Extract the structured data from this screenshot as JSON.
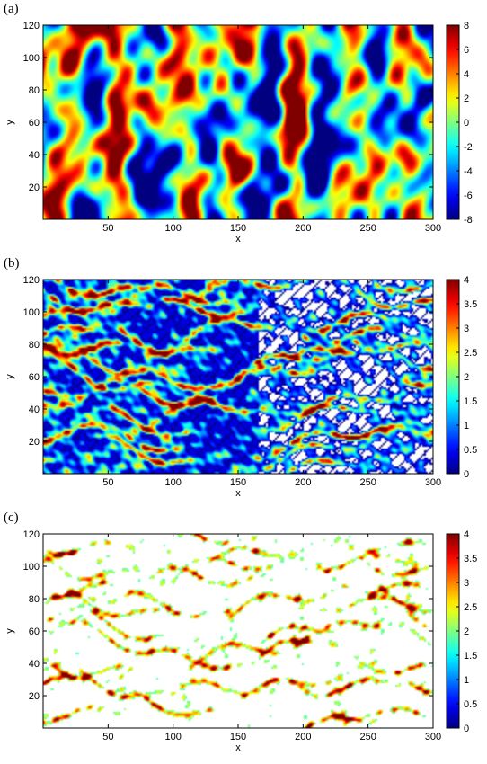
{
  "chart_data": [
    {
      "type": "heatmap",
      "panel_label": "(a)",
      "xlabel": "x",
      "ylabel": "y",
      "xlim": [
        0,
        300
      ],
      "ylim": [
        0,
        120
      ],
      "xticks": [
        50,
        100,
        150,
        200,
        250,
        300
      ],
      "yticks": [
        20,
        40,
        60,
        80,
        100,
        120
      ],
      "colorbar": {
        "min": -8,
        "max": 8,
        "ticks": [
          8,
          6,
          4,
          2,
          0,
          -2,
          -4,
          -6,
          -8
        ],
        "colormap": "jet"
      },
      "field": {
        "kind": "random-field",
        "min": -8,
        "max": 8,
        "white_above": null,
        "white_below": null,
        "bias_left": 0
      }
    },
    {
      "type": "heatmap",
      "panel_label": "(b)",
      "xlabel": "x",
      "ylabel": "y",
      "xlim": [
        0,
        300
      ],
      "ylim": [
        0,
        120
      ],
      "xticks": [
        50,
        100,
        150,
        200,
        250,
        300
      ],
      "yticks": [
        20,
        40,
        60,
        80,
        100,
        120
      ],
      "colorbar": {
        "min": 0,
        "max": 4,
        "ticks": [
          4,
          3.5,
          3,
          2.5,
          2,
          1.5,
          1,
          0.5,
          0
        ],
        "colormap": "jet"
      },
      "field": {
        "kind": "channelized-flow",
        "min": 0,
        "max": 4,
        "white_above": null,
        "white_below": 0,
        "bias_left": 1
      }
    },
    {
      "type": "heatmap",
      "panel_label": "(c)",
      "xlabel": "x",
      "ylabel": "y",
      "xlim": [
        0,
        300
      ],
      "ylim": [
        0,
        120
      ],
      "xticks": [
        50,
        100,
        150,
        200,
        250,
        300
      ],
      "yticks": [
        20,
        40,
        60,
        80,
        100,
        120
      ],
      "colorbar": {
        "min": 0,
        "max": 4,
        "ticks": [
          4,
          3.5,
          3,
          2.5,
          2,
          1.5,
          1,
          0.5,
          0
        ],
        "colormap": "jet"
      },
      "field": {
        "kind": "channelized-flow",
        "min": 0,
        "max": 4,
        "white_above": null,
        "white_below": 1.8,
        "bias_left": 0
      }
    }
  ]
}
